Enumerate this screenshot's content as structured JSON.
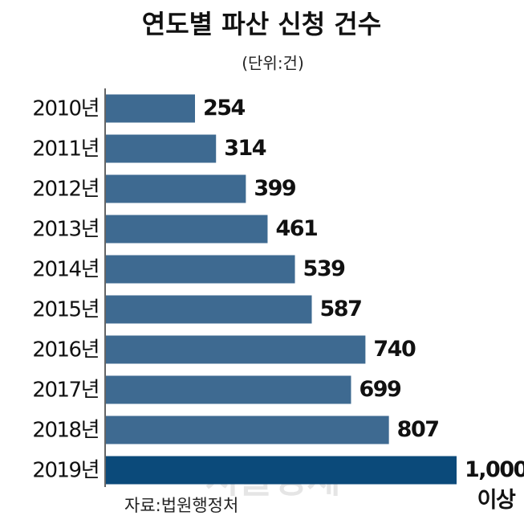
{
  "chart_data": {
    "type": "barh",
    "title": "연도별 파산 신청 건수",
    "subtitle": "(단위:건)",
    "categories": [
      "2010년",
      "2011년",
      "2012년",
      "2013년",
      "2014년",
      "2015년",
      "2016년",
      "2017년",
      "2018년",
      "2019년"
    ],
    "values": [
      254,
      314,
      399,
      461,
      539,
      587,
      740,
      699,
      807,
      1000
    ],
    "value_labels": [
      "254",
      "314",
      "399",
      "461",
      "539",
      "587",
      "740",
      "699",
      "807",
      "1,000\n이상"
    ],
    "colors": [
      "#3e6a91",
      "#3e6a91",
      "#3e6a91",
      "#3e6a91",
      "#3e6a91",
      "#3e6a91",
      "#3e6a91",
      "#3e6a91",
      "#3e6a91",
      "#0b4a7a"
    ],
    "source": "자료:법원행정처",
    "watermark": "서울경제"
  }
}
